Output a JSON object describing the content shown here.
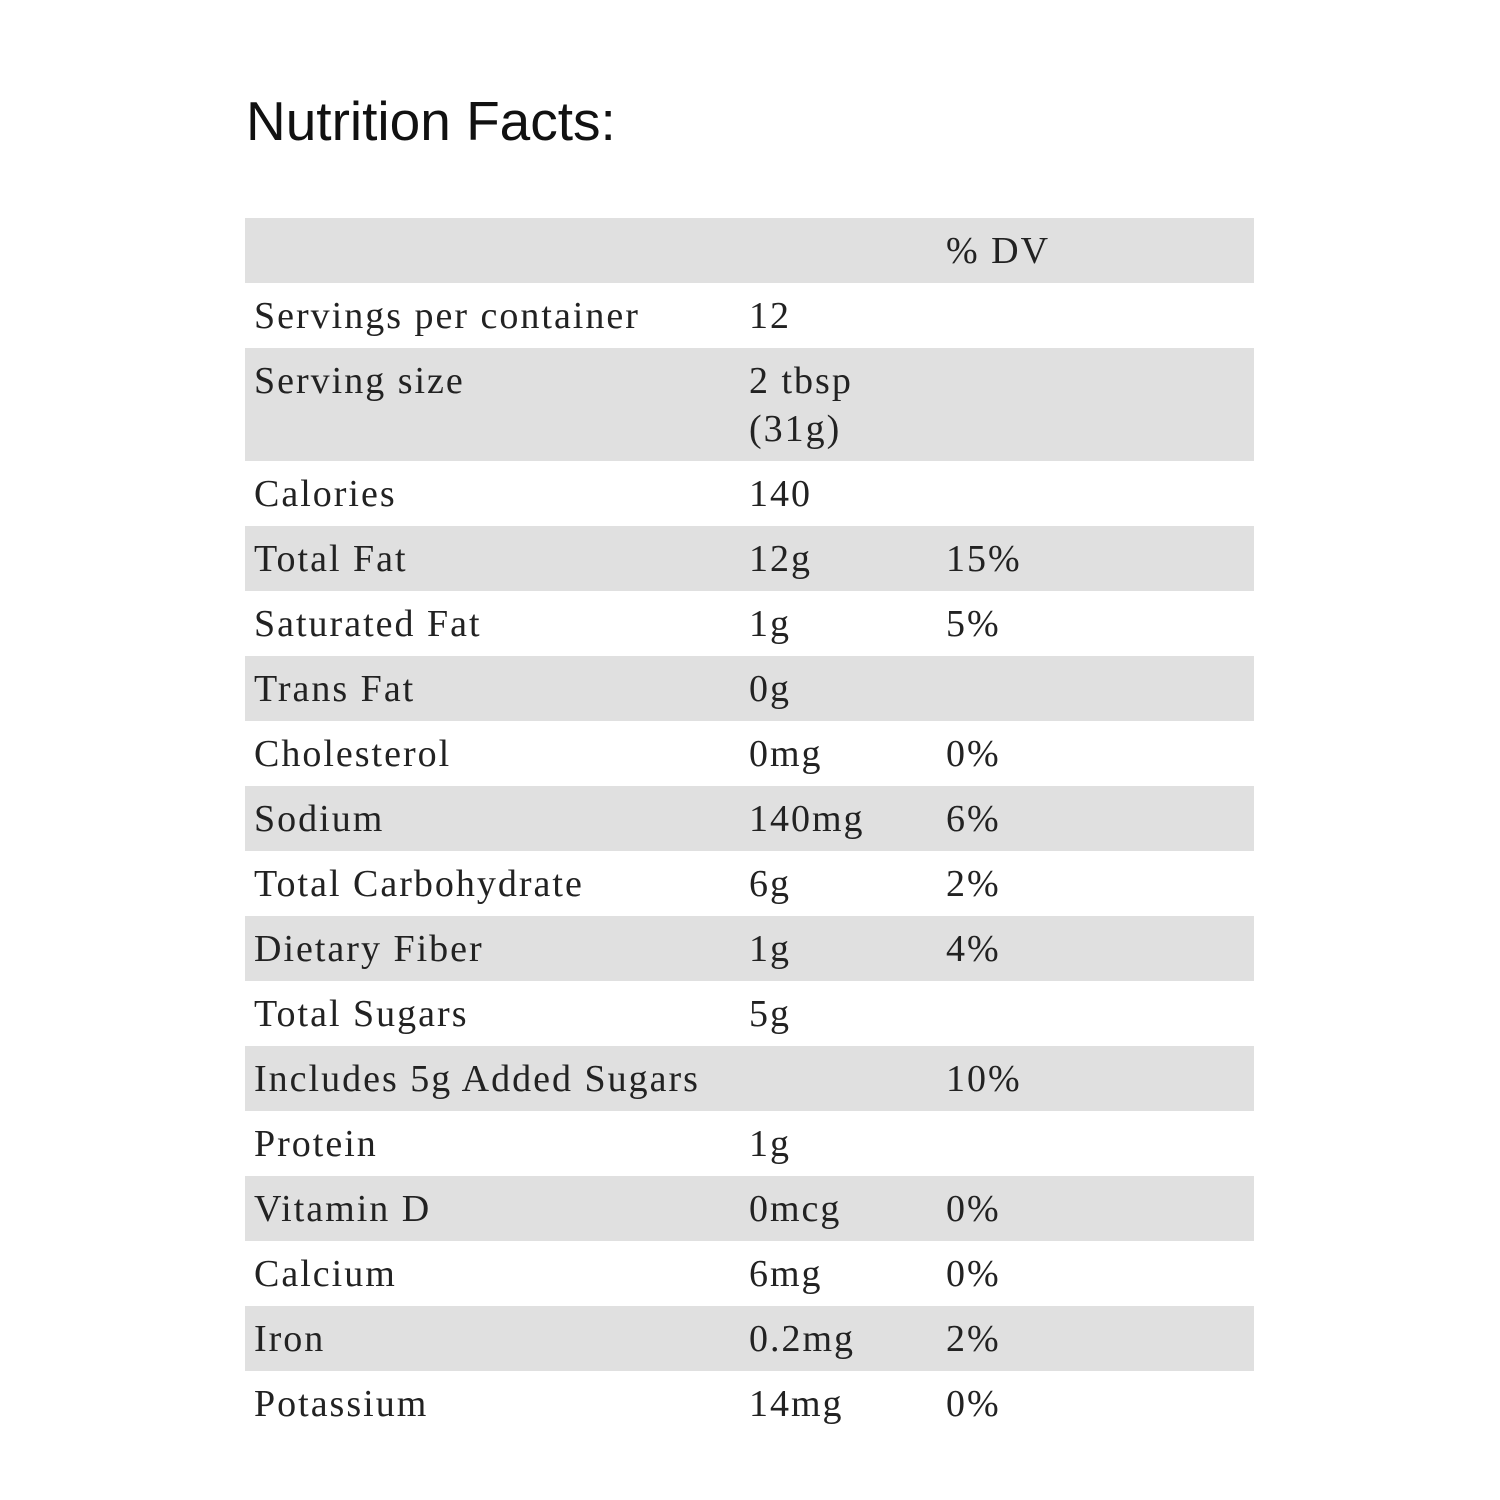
{
  "title": "Nutrition Facts:",
  "header": {
    "name": "",
    "amount": "",
    "dv": "% DV"
  },
  "rows": [
    {
      "name": "Servings per container",
      "amount": "12",
      "dv": ""
    },
    {
      "name": "Serving size",
      "amount": "2 tbsp (31g)",
      "dv": ""
    },
    {
      "name": "Calories",
      "amount": "140",
      "dv": ""
    },
    {
      "name": "Total Fat",
      "amount": "12g",
      "dv": "15%"
    },
    {
      "name": "Saturated Fat",
      "amount": "1g",
      "dv": "5%"
    },
    {
      "name": "Trans Fat",
      "amount": "0g",
      "dv": ""
    },
    {
      "name": "Cholesterol",
      "amount": "0mg",
      "dv": "0%"
    },
    {
      "name": "Sodium",
      "amount": "140mg",
      "dv": "6%"
    },
    {
      "name": "Total Carbohydrate",
      "amount": "6g",
      "dv": "2%"
    },
    {
      "name": "Dietary Fiber",
      "amount": "1g",
      "dv": "4%"
    },
    {
      "name": "Total Sugars",
      "amount": "5g",
      "dv": ""
    },
    {
      "name": "Includes 5g Added Sugars",
      "amount": "",
      "dv": "10%"
    },
    {
      "name": "Protein",
      "amount": "1g",
      "dv": ""
    },
    {
      "name": "Vitamin D",
      "amount": "0mcg",
      "dv": "0%"
    },
    {
      "name": "Calcium",
      "amount": "6mg",
      "dv": "0%"
    },
    {
      "name": "Iron",
      "amount": "0.2mg",
      "dv": "2%"
    },
    {
      "name": "Potassium",
      "amount": "14mg",
      "dv": "0%"
    }
  ]
}
